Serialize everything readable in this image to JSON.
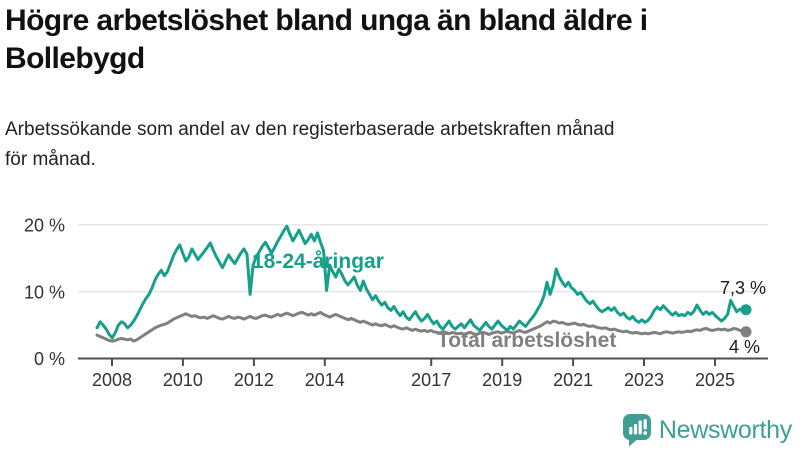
{
  "header": {
    "title_lines": [
      "Högre arbetslöshet bland unga än bland äldre i",
      "Bollebygd"
    ],
    "subtitle_lines": [
      "Arbetssökande som andel av den registerbaserade arbetskraften månad",
      "för månad."
    ]
  },
  "chart_data": {
    "type": "line",
    "unit": "%",
    "x_range": [
      "2008-01",
      "2025-09"
    ],
    "ylim": [
      0,
      20
    ],
    "grid": "horizontal-only",
    "y_tick_labels": [
      "20 %",
      "10 %",
      "0 %"
    ],
    "x_ticks": [
      {
        "label": "2008",
        "year": 2008
      },
      {
        "label": "2010",
        "year": 2010
      },
      {
        "label": "2012",
        "year": 2012
      },
      {
        "label": "2014",
        "year": 2014
      },
      {
        "label": "2017",
        "year": 2017
      },
      {
        "label": "2019",
        "year": 2019
      },
      {
        "label": "2021",
        "year": 2021
      },
      {
        "label": "2023",
        "year": 2023
      },
      {
        "label": "2025",
        "year": 2025
      }
    ],
    "series": [
      {
        "name": "18-24-åringar",
        "color": "#16a08c",
        "end_label": "7,3 %",
        "end_value": 7.3,
        "values": [
          4.6,
          5.5,
          5.0,
          4.4,
          3.6,
          3.1,
          3.9,
          5.0,
          5.5,
          5.2,
          4.6,
          5.0,
          5.6,
          6.4,
          7.3,
          8.2,
          9.0,
          9.6,
          10.6,
          11.8,
          12.6,
          13.2,
          12.4,
          13.0,
          14.2,
          15.4,
          16.3,
          17.0,
          15.8,
          14.6,
          15.2,
          16.4,
          15.6,
          14.8,
          15.4,
          16.0,
          16.6,
          17.3,
          16.2,
          15.2,
          14.4,
          13.6,
          14.6,
          15.5,
          14.8,
          14.2,
          15.0,
          15.8,
          16.4,
          15.6,
          9.6,
          14.0,
          15.2,
          16.0,
          16.8,
          17.4,
          16.6,
          15.8,
          16.6,
          17.5,
          18.3,
          19.1,
          19.8,
          18.6,
          17.6,
          18.4,
          19.2,
          18.2,
          17.2,
          17.8,
          18.6,
          17.6,
          18.8,
          17.4,
          16.2,
          10.2,
          14.0,
          13.0,
          12.2,
          13.4,
          12.6,
          11.6,
          11.0,
          11.6,
          12.2,
          11.0,
          10.2,
          11.6,
          10.4,
          9.6,
          8.8,
          9.4,
          8.6,
          8.0,
          8.4,
          7.6,
          7.2,
          7.8,
          7.0,
          6.4,
          7.0,
          6.2,
          5.8,
          6.4,
          7.0,
          6.2,
          5.6,
          6.0,
          6.6,
          5.8,
          5.2,
          5.6,
          4.8,
          4.4,
          5.0,
          5.6,
          4.8,
          4.4,
          4.8,
          5.2,
          4.6,
          5.2,
          5.8,
          5.0,
          4.6,
          4.2,
          4.8,
          5.4,
          4.8,
          4.4,
          5.0,
          5.6,
          5.0,
          4.6,
          4.2,
          4.8,
          4.4,
          5.0,
          5.6,
          5.2,
          4.8,
          5.4,
          6.0,
          6.6,
          7.4,
          8.2,
          9.4,
          11.4,
          9.6,
          11.0,
          13.4,
          12.2,
          11.4,
          10.8,
          11.4,
          10.6,
          10.2,
          9.6,
          9.9,
          9.2,
          8.6,
          8.2,
          8.6,
          7.9,
          7.3,
          7.0,
          7.3,
          7.6,
          7.2,
          7.6,
          6.9,
          6.5,
          6.8,
          6.2,
          5.9,
          6.3,
          5.7,
          5.4,
          5.8,
          5.4,
          5.7,
          6.3,
          7.2,
          7.7,
          7.3,
          7.9,
          7.4,
          6.9,
          6.5,
          6.9,
          6.4,
          6.6,
          6.4,
          6.9,
          6.6,
          7.1,
          8.0,
          7.2,
          6.6,
          7.0,
          6.6,
          6.9,
          6.4,
          6.0,
          5.6,
          6.0,
          6.6,
          8.7,
          7.8,
          7.0,
          7.4,
          7.1,
          7.3
        ]
      },
      {
        "name": "Total arbetslöshet",
        "color": "#808080",
        "end_label": "4 %",
        "end_value": 4.0,
        "values": [
          3.5,
          3.3,
          3.1,
          2.9,
          2.7,
          2.6,
          2.7,
          2.9,
          3.0,
          2.9,
          2.8,
          2.9,
          2.6,
          2.8,
          3.1,
          3.4,
          3.7,
          4.0,
          4.3,
          4.6,
          4.8,
          5.0,
          5.1,
          5.3,
          5.6,
          5.9,
          6.1,
          6.3,
          6.5,
          6.7,
          6.5,
          6.3,
          6.4,
          6.2,
          6.1,
          6.2,
          6.0,
          6.2,
          6.4,
          6.2,
          6.0,
          5.9,
          6.1,
          6.3,
          6.1,
          6.0,
          6.2,
          6.1,
          5.9,
          6.1,
          6.3,
          6.1,
          6.0,
          6.2,
          6.4,
          6.5,
          6.3,
          6.2,
          6.4,
          6.6,
          6.4,
          6.6,
          6.8,
          6.6,
          6.4,
          6.6,
          6.8,
          6.9,
          6.7,
          6.5,
          6.7,
          6.5,
          6.7,
          6.9,
          6.6,
          6.4,
          6.2,
          6.4,
          6.6,
          6.4,
          6.2,
          6.0,
          5.8,
          6.0,
          5.8,
          5.6,
          5.4,
          5.6,
          5.4,
          5.2,
          5.0,
          5.2,
          5.0,
          4.9,
          5.1,
          4.9,
          4.7,
          4.9,
          4.7,
          4.5,
          4.4,
          4.6,
          4.4,
          4.2,
          4.4,
          4.2,
          4.1,
          4.2,
          4.0,
          4.2,
          4.0,
          3.9,
          3.8,
          4.0,
          3.9,
          3.7,
          3.9,
          3.8,
          3.7,
          3.8,
          3.6,
          3.8,
          3.9,
          3.7,
          3.6,
          3.8,
          3.9,
          3.8,
          3.6,
          3.8,
          3.9,
          4.0,
          3.8,
          3.9,
          4.1,
          3.9,
          3.8,
          4.0,
          4.2,
          4.0,
          3.9,
          4.1,
          4.3,
          4.5,
          4.7,
          4.9,
          5.2,
          5.5,
          5.3,
          5.6,
          5.5,
          5.3,
          5.4,
          5.2,
          5.1,
          5.2,
          5.3,
          5.1,
          5.0,
          5.1,
          4.9,
          4.8,
          4.9,
          4.7,
          4.6,
          4.5,
          4.6,
          4.4,
          4.3,
          4.4,
          4.2,
          4.1,
          4.0,
          4.1,
          3.9,
          3.8,
          3.9,
          3.8,
          3.7,
          3.8,
          3.7,
          3.8,
          3.9,
          3.8,
          3.7,
          3.9,
          4.0,
          3.9,
          3.8,
          3.9,
          4.0,
          3.9,
          4.0,
          4.1,
          4.0,
          4.2,
          4.3,
          4.2,
          4.4,
          4.5,
          4.3,
          4.2,
          4.3,
          4.4,
          4.3,
          4.4,
          4.2,
          4.3,
          4.5,
          4.4,
          4.2,
          4.1,
          4.0
        ]
      }
    ]
  },
  "branding": {
    "logo_text": "Newsworthy",
    "color": "#3f9f94"
  }
}
